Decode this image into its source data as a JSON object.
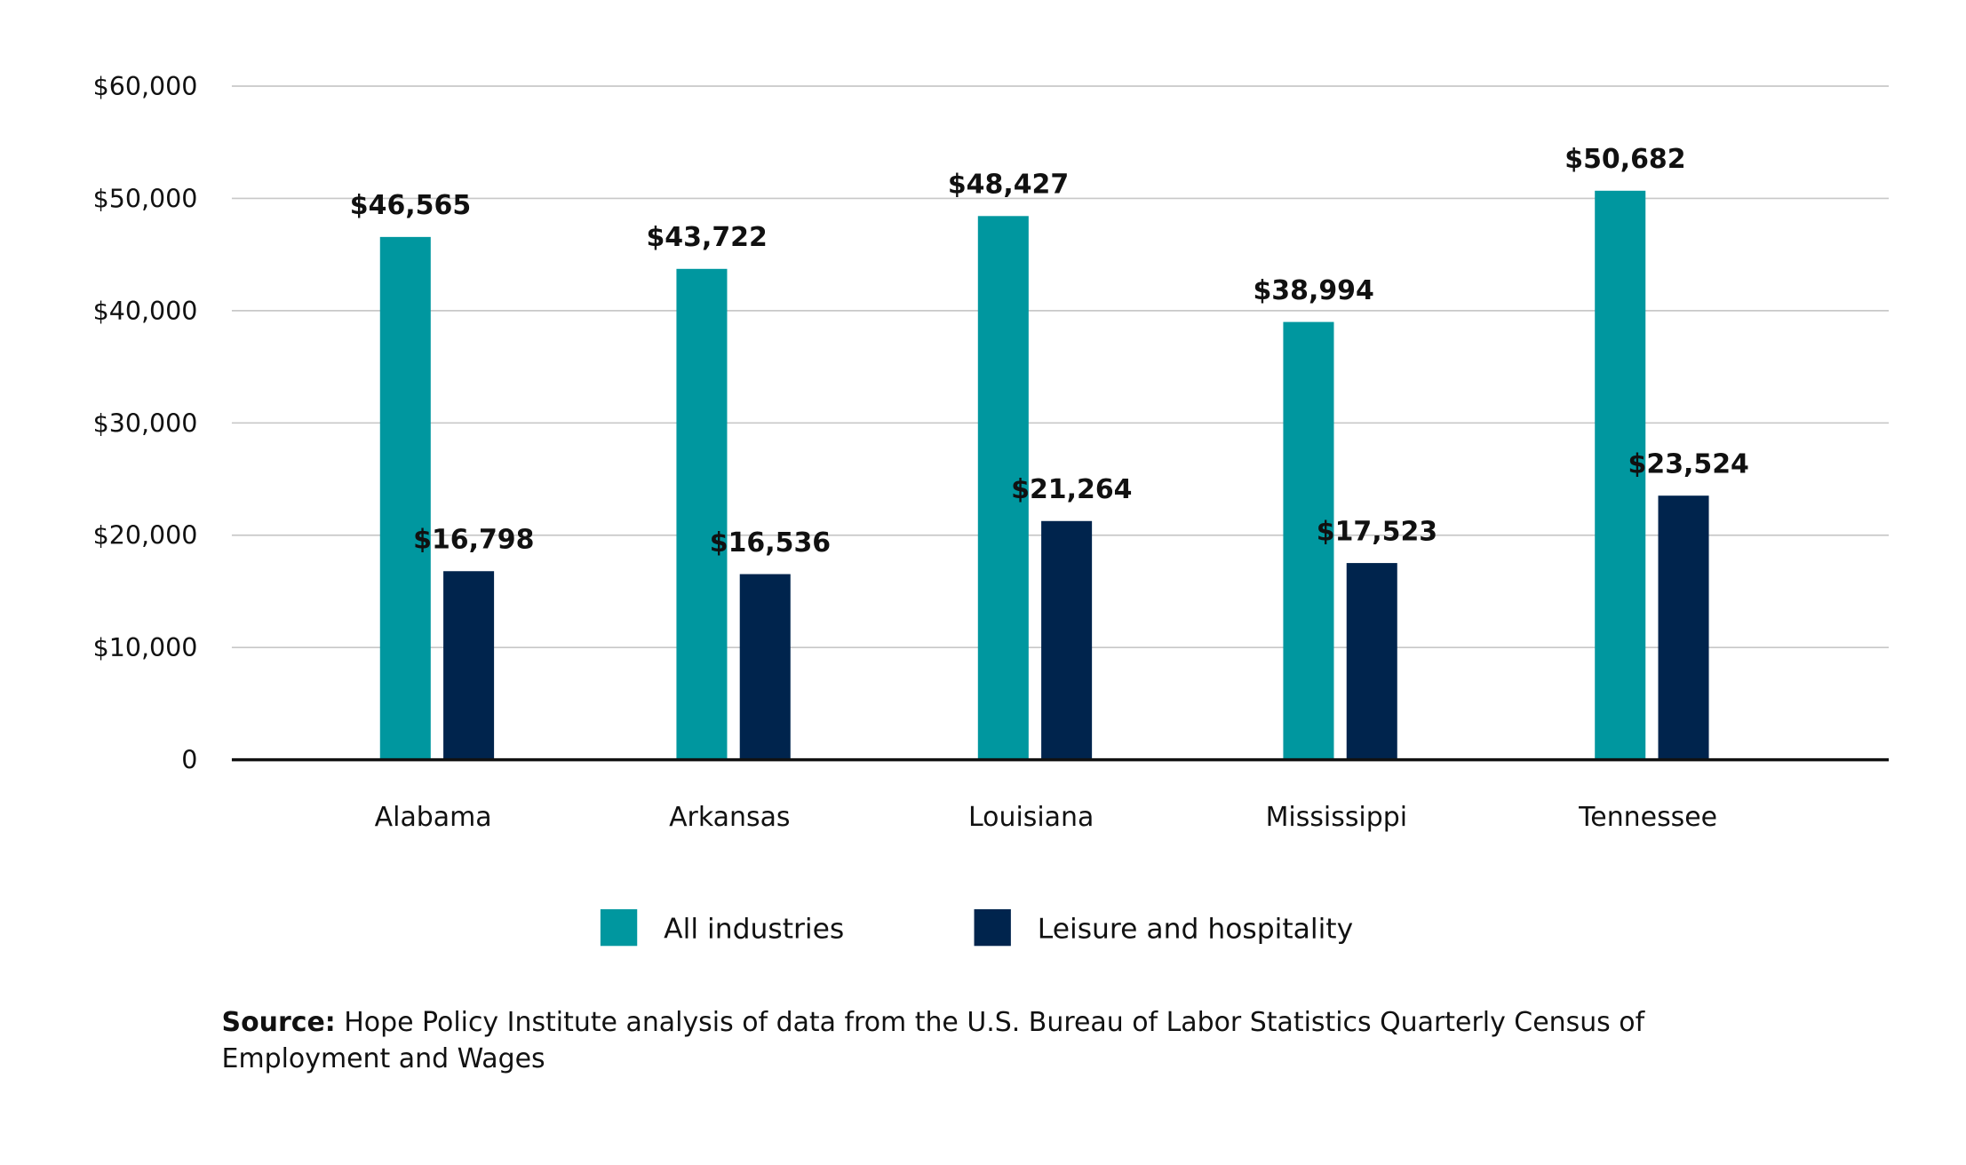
{
  "chart_data": {
    "type": "bar",
    "title": "",
    "xlabel": "",
    "ylabel": "",
    "ylim": [
      0,
      60000
    ],
    "yticks": [
      0,
      10000,
      20000,
      30000,
      40000,
      50000,
      60000
    ],
    "ytick_labels": [
      "0",
      "$10,000",
      "$20,000",
      "$30,000",
      "$40,000",
      "$50,000",
      "$60,000"
    ],
    "grid": true,
    "legend_position": "bottom-center",
    "categories": [
      "Alabama",
      "Arkansas",
      "Louisiana",
      "Mississippi",
      "Tennessee"
    ],
    "series": [
      {
        "name": "All industries",
        "color": "#00979f",
        "values": [
          46565,
          43722,
          48427,
          38994,
          50682
        ],
        "labels": [
          "$46,565",
          "$43,722",
          "$48,427",
          "$38,994",
          "$50,682"
        ]
      },
      {
        "name": "Leisure and hospitality",
        "color": "#00244d",
        "values": [
          16798,
          16536,
          21264,
          17523,
          23524
        ],
        "labels": [
          "$16,798",
          "$16,536",
          "$21,264",
          "$17,523",
          "$23,524"
        ]
      }
    ]
  },
  "source": {
    "label": "Source:",
    "line1": " Hope Policy Institute analysis of data from the U.S. Bureau of Labor Statistics Quarterly Census of",
    "line2": "Employment and Wages"
  }
}
